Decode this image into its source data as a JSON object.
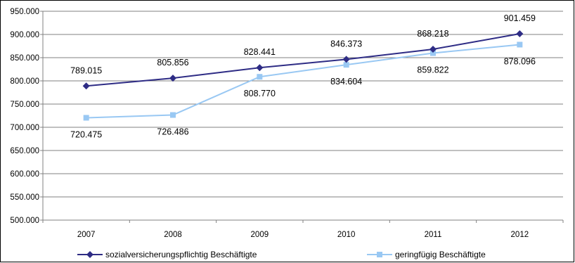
{
  "chart_data": {
    "type": "line",
    "title": "",
    "xlabel": "",
    "ylabel": "",
    "categories": [
      "2007",
      "2008",
      "2009",
      "2010",
      "2011",
      "2012"
    ],
    "ylim": [
      500000,
      950000
    ],
    "yticks": [
      500000,
      550000,
      600000,
      650000,
      700000,
      750000,
      800000,
      850000,
      900000,
      950000
    ],
    "ytick_labels": [
      "500.000",
      "550.000",
      "600.000",
      "650.000",
      "700.000",
      "750.000",
      "800.000",
      "850.000",
      "900.000",
      "950.000"
    ],
    "grid": true,
    "legend_position": "bottom",
    "series": [
      {
        "name": "sozialversicherungspflichtig Beschäftigte",
        "values": [
          789015,
          805856,
          828441,
          846373,
          868218,
          901459
        ],
        "labels": [
          "789.015",
          "805.856",
          "828.441",
          "846.373",
          "868.218",
          "901.459"
        ],
        "color": "#2E2C85",
        "marker": "diamond"
      },
      {
        "name": "geringfügig Beschäftigte",
        "values": [
          720475,
          726486,
          808770,
          834604,
          859822,
          878096
        ],
        "labels": [
          "720.475",
          "726.486",
          "808.770",
          "834.604",
          "859.822",
          "878.096"
        ],
        "color": "#99C8F3",
        "marker": "square"
      }
    ]
  }
}
